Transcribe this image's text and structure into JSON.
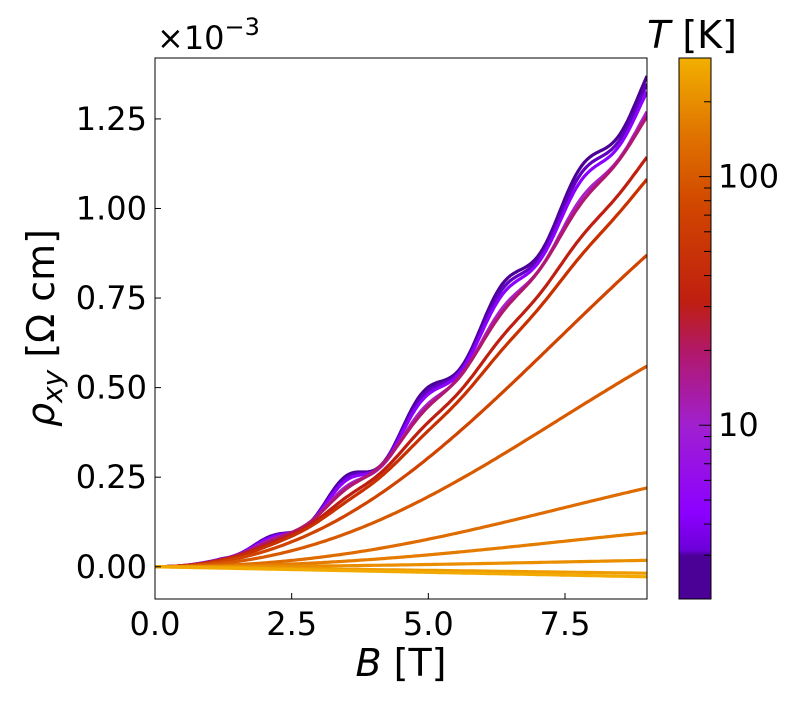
{
  "chart_data": {
    "type": "line",
    "xlabel_var": "B",
    "xlabel_unit": " [T]",
    "ylabel_var": "ρ",
    "ylabel_sub": "xy",
    "ylabel_unit": " [Ω cm]",
    "y_multiplier": "×10",
    "y_multiplier_exp": "−3",
    "xlim": [
      0,
      9
    ],
    "ylim": [
      -0.09,
      1.42
    ],
    "xticks": [
      0,
      2.5,
      5,
      7.5
    ],
    "xtick_labels": [
      "0.0",
      "2.5",
      "5.0",
      "7.5"
    ],
    "yticks": [
      0,
      0.25,
      0.5,
      0.75,
      1.0,
      1.25
    ],
    "ytick_labels": [
      "0.00",
      "0.25",
      "0.50",
      "0.75",
      "1.00",
      "1.25"
    ],
    "grid": false,
    "colorbar": {
      "label_var": "T",
      "label_unit": " [K]",
      "scale": "log",
      "range": [
        2,
        300
      ],
      "ticks": [
        10,
        100
      ],
      "tick_labels": [
        "10",
        "100"
      ],
      "colormap": "gnuplot"
    },
    "series": [
      {
        "T": 2,
        "color": "#4b0096",
        "max": 1.35,
        "osc": 0.035
      },
      {
        "T": 3,
        "color": "#6000c0",
        "max": 1.33,
        "osc": 0.032
      },
      {
        "T": 5,
        "color": "#8c00ff",
        "max": 1.31,
        "osc": 0.028
      },
      {
        "T": 10,
        "color": "#a820c8",
        "max": 1.26,
        "osc": 0.018
      },
      {
        "T": 15,
        "color": "#b01870",
        "max": 1.25,
        "osc": 0.012
      },
      {
        "T": 20,
        "color": "#bf1f10",
        "max": 1.14,
        "osc": 0.006
      },
      {
        "T": 30,
        "color": "#c83000",
        "max": 1.08,
        "osc": 0.003
      },
      {
        "T": 50,
        "color": "#d04400",
        "max": 0.87,
        "osc": 0
      },
      {
        "T": 75,
        "color": "#d85a00",
        "max": 0.56,
        "osc": 0
      },
      {
        "T": 100,
        "color": "#df6c00",
        "max": 0.22,
        "osc": 0
      },
      {
        "T": 150,
        "color": "#e57c00",
        "max": 0.095,
        "osc": 0
      },
      {
        "T": 200,
        "color": "#ea8e00",
        "max": 0.018,
        "osc": 0
      },
      {
        "T": 250,
        "color": "#ee9c00",
        "max": -0.018,
        "osc": 0
      },
      {
        "T": 300,
        "color": "#f2aa00",
        "max": -0.028,
        "osc": 0
      }
    ]
  }
}
